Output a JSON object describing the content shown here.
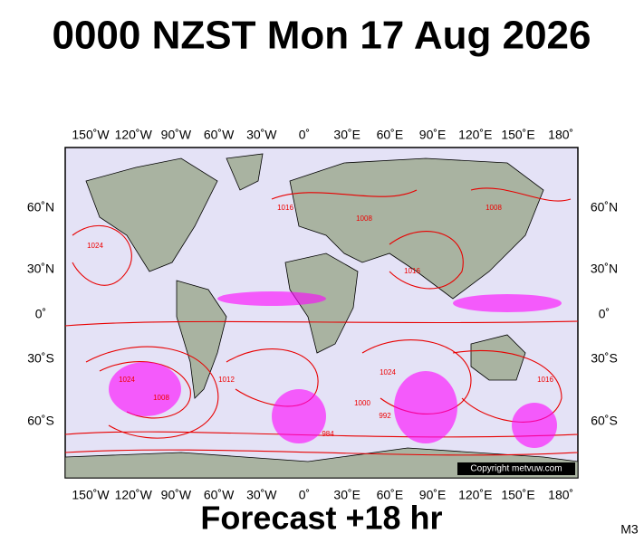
{
  "header": {
    "title": "0000 NZST Mon 17 Aug 2026"
  },
  "map": {
    "longitude_labels": [
      "150˚W",
      "120˚W",
      "90˚W",
      "60˚W",
      "30˚W",
      "0˚",
      "30˚E",
      "60˚E",
      "90˚E",
      "120˚E",
      "150˚E",
      "180˚"
    ],
    "latitude_labels": [
      "60˚N",
      "30˚N",
      "0˚",
      "30˚S",
      "60˚S"
    ],
    "isobar_labels": [
      "1024",
      "1016",
      "1008",
      "1024",
      "1008",
      "1000",
      "1024",
      "1016",
      "1008",
      "1012",
      "984",
      "992",
      "1016"
    ],
    "copyright": "Copyright metvuw.com"
  },
  "footer": {
    "forecast": "Forecast +18 hr",
    "model": "M3"
  }
}
